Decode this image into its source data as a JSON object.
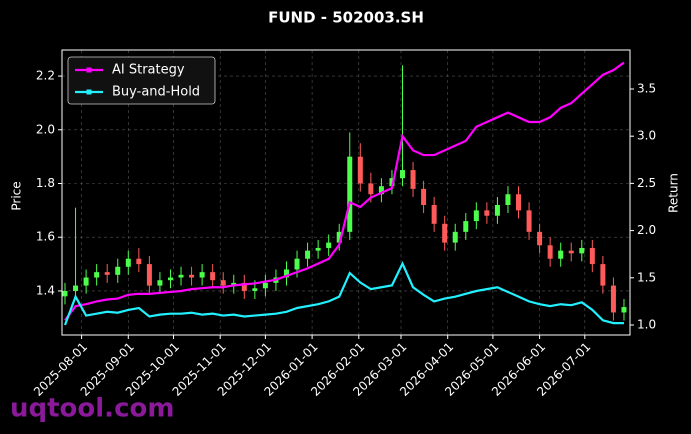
{
  "chart_data": {
    "type": "candlestick",
    "title": "FUND - 502003.SH",
    "ylabel": "Price",
    "y2label": "Return",
    "watermark": "uqtool.com",
    "x": [
      "2025-07-21",
      "2025-07-28",
      "2025-08-04",
      "2025-08-11",
      "2025-08-18",
      "2025-08-25",
      "2025-09-01",
      "2025-09-08",
      "2025-09-15",
      "2025-09-22",
      "2025-09-29",
      "2025-10-06",
      "2025-10-13",
      "2025-10-20",
      "2025-10-27",
      "2025-11-03",
      "2025-11-10",
      "2025-11-17",
      "2025-11-24",
      "2025-12-01",
      "2025-12-08",
      "2025-12-15",
      "2025-12-22",
      "2025-12-29",
      "2026-01-05",
      "2026-01-12",
      "2026-01-19",
      "2026-01-26",
      "2026-02-02",
      "2026-02-09",
      "2026-02-16",
      "2026-02-23",
      "2026-03-02",
      "2026-03-09",
      "2026-03-16",
      "2026-03-23",
      "2026-03-30",
      "2026-04-06",
      "2026-04-13",
      "2026-04-20",
      "2026-04-27",
      "2026-05-04",
      "2026-05-11",
      "2026-05-18",
      "2026-05-25",
      "2026-06-01",
      "2026-06-08",
      "2026-06-15",
      "2026-06-22",
      "2026-06-29",
      "2026-07-06",
      "2026-07-13",
      "2026-07-20",
      "2026-07-27"
    ],
    "open": [
      1.38,
      1.4,
      1.42,
      1.45,
      1.47,
      1.46,
      1.49,
      1.52,
      1.5,
      1.42,
      1.44,
      1.45,
      1.46,
      1.45,
      1.47,
      1.44,
      1.42,
      1.43,
      1.4,
      1.41,
      1.43,
      1.45,
      1.48,
      1.52,
      1.55,
      1.56,
      1.58,
      1.62,
      1.9,
      1.8,
      1.76,
      1.79,
      1.82,
      1.85,
      1.78,
      1.72,
      1.65,
      1.58,
      1.62,
      1.66,
      1.7,
      1.68,
      1.72,
      1.76,
      1.7,
      1.62,
      1.57,
      1.52,
      1.55,
      1.54,
      1.56,
      1.5,
      1.42,
      1.32
    ],
    "high": [
      1.43,
      1.71,
      1.48,
      1.5,
      1.5,
      1.52,
      1.55,
      1.56,
      1.53,
      1.47,
      1.48,
      1.49,
      1.49,
      1.5,
      1.5,
      1.47,
      1.46,
      1.46,
      1.44,
      1.46,
      1.48,
      1.51,
      1.55,
      1.58,
      1.59,
      1.61,
      1.65,
      1.99,
      1.95,
      1.84,
      1.82,
      1.85,
      2.24,
      1.88,
      1.81,
      1.75,
      1.68,
      1.65,
      1.69,
      1.73,
      1.73,
      1.75,
      1.79,
      1.79,
      1.73,
      1.65,
      1.6,
      1.58,
      1.58,
      1.59,
      1.59,
      1.53,
      1.45,
      1.37
    ],
    "low": [
      1.35,
      1.37,
      1.39,
      1.42,
      1.43,
      1.43,
      1.46,
      1.47,
      1.39,
      1.39,
      1.41,
      1.42,
      1.42,
      1.42,
      1.41,
      1.39,
      1.39,
      1.37,
      1.37,
      1.38,
      1.4,
      1.42,
      1.45,
      1.49,
      1.52,
      1.53,
      1.55,
      1.59,
      1.77,
      1.73,
      1.73,
      1.76,
      1.79,
      1.75,
      1.69,
      1.62,
      1.55,
      1.55,
      1.59,
      1.63,
      1.65,
      1.65,
      1.69,
      1.67,
      1.59,
      1.54,
      1.49,
      1.49,
      1.51,
      1.51,
      1.47,
      1.39,
      1.29,
      1.29
    ],
    "close": [
      1.4,
      1.42,
      1.45,
      1.47,
      1.46,
      1.49,
      1.52,
      1.5,
      1.42,
      1.44,
      1.45,
      1.46,
      1.45,
      1.47,
      1.44,
      1.42,
      1.43,
      1.4,
      1.41,
      1.43,
      1.45,
      1.48,
      1.52,
      1.55,
      1.56,
      1.58,
      1.62,
      1.9,
      1.8,
      1.76,
      1.79,
      1.82,
      1.85,
      1.78,
      1.72,
      1.65,
      1.58,
      1.62,
      1.66,
      1.7,
      1.68,
      1.72,
      1.76,
      1.7,
      1.62,
      1.57,
      1.52,
      1.55,
      1.54,
      1.56,
      1.5,
      1.42,
      1.32,
      1.34
    ],
    "up_color": "#4dff4d",
    "down_color": "#ff5a5a",
    "series": [
      {
        "name": "AI Strategy",
        "color": "#ff00ff",
        "axis": "y2",
        "values": [
          1.05,
          1.2,
          1.22,
          1.25,
          1.27,
          1.28,
          1.32,
          1.33,
          1.33,
          1.34,
          1.35,
          1.36,
          1.38,
          1.39,
          1.4,
          1.4,
          1.42,
          1.43,
          1.44,
          1.46,
          1.48,
          1.52,
          1.56,
          1.6,
          1.65,
          1.7,
          1.85,
          2.3,
          2.25,
          2.35,
          2.4,
          2.45,
          3.0,
          2.85,
          2.8,
          2.8,
          2.85,
          2.9,
          2.95,
          3.1,
          3.15,
          3.2,
          3.25,
          3.2,
          3.15,
          3.15,
          3.2,
          3.3,
          3.35,
          3.45,
          3.55,
          3.65,
          3.7,
          3.78
        ]
      },
      {
        "name": "Buy-and-Hold",
        "color": "#22f0ff",
        "axis": "y2",
        "values": [
          1.0,
          1.3,
          1.1,
          1.12,
          1.14,
          1.13,
          1.16,
          1.18,
          1.09,
          1.11,
          1.12,
          1.12,
          1.13,
          1.11,
          1.12,
          1.1,
          1.11,
          1.09,
          1.1,
          1.11,
          1.12,
          1.14,
          1.18,
          1.2,
          1.22,
          1.25,
          1.3,
          1.55,
          1.45,
          1.38,
          1.4,
          1.42,
          1.65,
          1.4,
          1.32,
          1.25,
          1.28,
          1.3,
          1.33,
          1.36,
          1.38,
          1.4,
          1.35,
          1.3,
          1.25,
          1.22,
          1.2,
          1.22,
          1.21,
          1.24,
          1.16,
          1.05,
          1.02,
          1.02
        ]
      }
    ],
    "xlim": [
      "2025-07-19",
      "2026-07-31"
    ],
    "xticks": [
      "2025-08-01",
      "2025-09-01",
      "2025-10-01",
      "2025-11-01",
      "2025-12-01",
      "2026-01-01",
      "2026-02-01",
      "2026-03-01",
      "2026-04-01",
      "2026-05-01",
      "2026-06-01",
      "2026-07-01"
    ],
    "ylim": [
      1.236,
      2.297
    ],
    "yticks": [
      1.4,
      1.6,
      1.8,
      {
        "value": 2,
        "label": "2.0"
      },
      2.2
    ],
    "y2lim": [
      0.894,
      3.913
    ],
    "y2ticks": [
      {
        "value": 1,
        "label": "1.0"
      },
      1.5,
      {
        "value": 2,
        "label": "2.0"
      },
      2.5,
      {
        "value": 3,
        "label": "3.0"
      },
      3.5
    ],
    "grid": true,
    "legend": "upper left"
  }
}
